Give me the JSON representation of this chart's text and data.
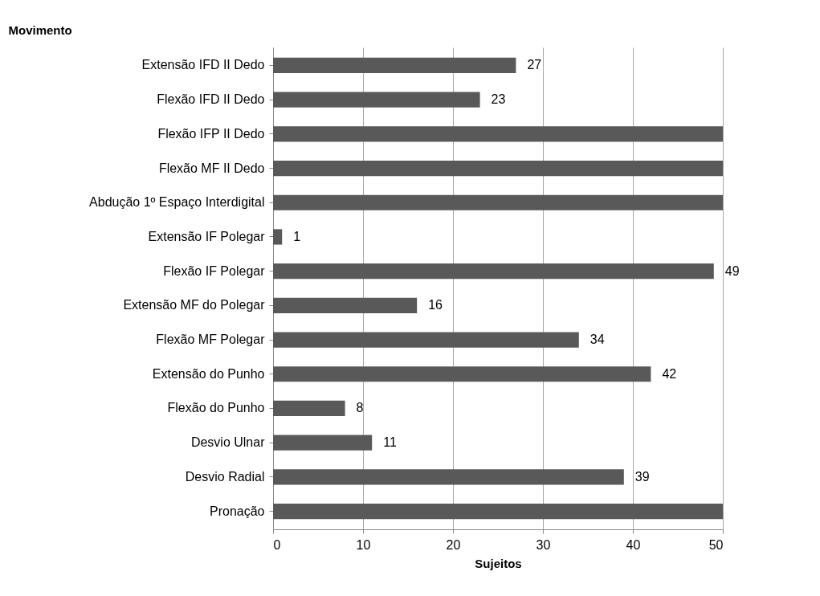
{
  "chart_data": {
    "type": "bar",
    "orientation": "horizontal",
    "ylabel": "Movimento",
    "xlabel": "Sujeitos",
    "categories": [
      "Extensão IFD II Dedo",
      "Flexão IFD II Dedo",
      "Flexão IFP II Dedo",
      "Flexão MF II Dedo",
      "Abdução 1º Espaço Interdigital",
      "Extensão IF Polegar",
      "Flexão IF Polegar",
      "Extensão MF do Polegar",
      "Flexão MF Polegar",
      "Extensão do Punho",
      "Flexão do Punho",
      "Desvio Ulnar",
      "Desvio Radial",
      "Pronação"
    ],
    "values": [
      27,
      23,
      50,
      50,
      50,
      1,
      49,
      16,
      34,
      42,
      8,
      11,
      39,
      50
    ],
    "value_labels": [
      "27",
      "23",
      null,
      null,
      null,
      "1",
      "49",
      "16",
      "34",
      "42",
      "8",
      "11",
      "39",
      null
    ],
    "color": "#595959",
    "xlim": [
      0,
      50
    ],
    "xticks": [
      0,
      10,
      20,
      30,
      40,
      50
    ],
    "grid": "x"
  }
}
